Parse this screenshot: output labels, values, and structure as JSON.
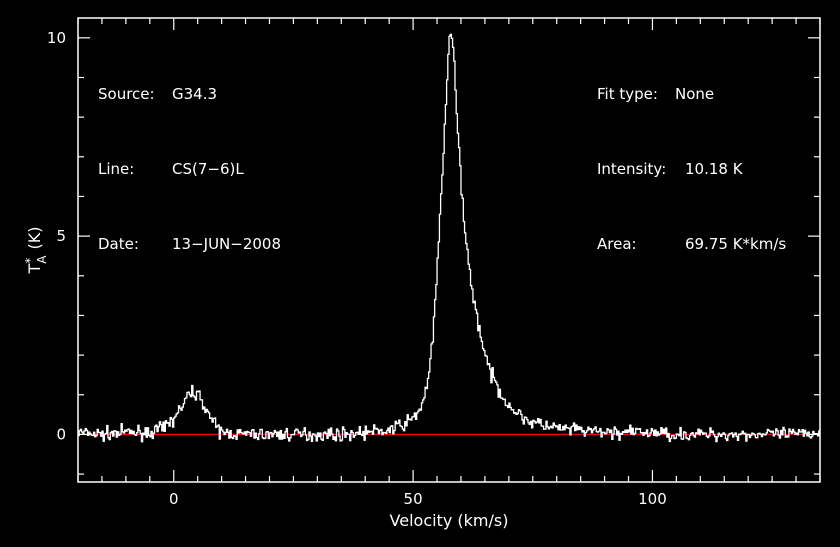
{
  "header_left": {
    "rows": [
      {
        "label": "Source:",
        "value": "G34.3"
      },
      {
        "label": "Line:",
        "value": "CS(7−6)L"
      },
      {
        "label": "Date:",
        "value": "13−JUN−2008"
      }
    ]
  },
  "header_right": {
    "rows": [
      {
        "label": "Fit type:",
        "value": "None"
      },
      {
        "label": "Intensity:",
        "value": "10.18 K"
      },
      {
        "label": "Area:",
        "value": "69.75 K*km/s"
      }
    ]
  },
  "colors": {
    "background": "#000000",
    "axes": "#ffffff",
    "spectrum": "#ffffff",
    "baseline": "#ff0000"
  },
  "chart_data": {
    "type": "line",
    "title": "",
    "xlabel": "Velocity (km/s)",
    "ylabel_base": "T",
    "ylabel_sup": "*",
    "ylabel_sub": "A",
    "ylabel_unit": "(K)",
    "xlim": [
      -20,
      135
    ],
    "ylim": [
      -1.2,
      10.5
    ],
    "xticks": [
      0,
      50,
      100
    ],
    "xtick_labels": [
      "0",
      "50",
      "100"
    ],
    "yticks": [
      0,
      5,
      10
    ],
    "ytick_labels": [
      "0",
      "5",
      "10"
    ],
    "baseline_y": 0,
    "grid": false,
    "legend": "none",
    "series": [
      {
        "x": [
          -20,
          -15,
          -10,
          -5,
          -2,
          0,
          2,
          3,
          4,
          5,
          6,
          7,
          8,
          9,
          10,
          15,
          20,
          25,
          30,
          35,
          40,
          45,
          48,
          50,
          51,
          52,
          53,
          54,
          55,
          56,
          57,
          57.5,
          58,
          58.5,
          59,
          60,
          61,
          62,
          63,
          64,
          65,
          66,
          68,
          70,
          72,
          75,
          80,
          85,
          90,
          95,
          100,
          105,
          110,
          115,
          120,
          125,
          130,
          135
        ],
        "y": [
          0.05,
          0.0,
          0.05,
          0.05,
          0.15,
          0.4,
          0.75,
          0.95,
          1.1,
          1.0,
          0.85,
          0.6,
          0.35,
          0.15,
          0.05,
          0.0,
          0.0,
          0.0,
          0.0,
          0.0,
          0.05,
          0.1,
          0.25,
          0.4,
          0.55,
          0.8,
          1.3,
          2.2,
          4.0,
          6.3,
          8.7,
          9.8,
          10.18,
          9.6,
          8.3,
          6.4,
          5.0,
          3.9,
          3.2,
          2.6,
          2.0,
          1.6,
          1.1,
          0.75,
          0.5,
          0.3,
          0.15,
          0.1,
          0.05,
          0.05,
          0.05,
          0.0,
          0.0,
          0.0,
          0.0,
          0.0,
          0.0,
          0.05
        ]
      }
    ]
  }
}
